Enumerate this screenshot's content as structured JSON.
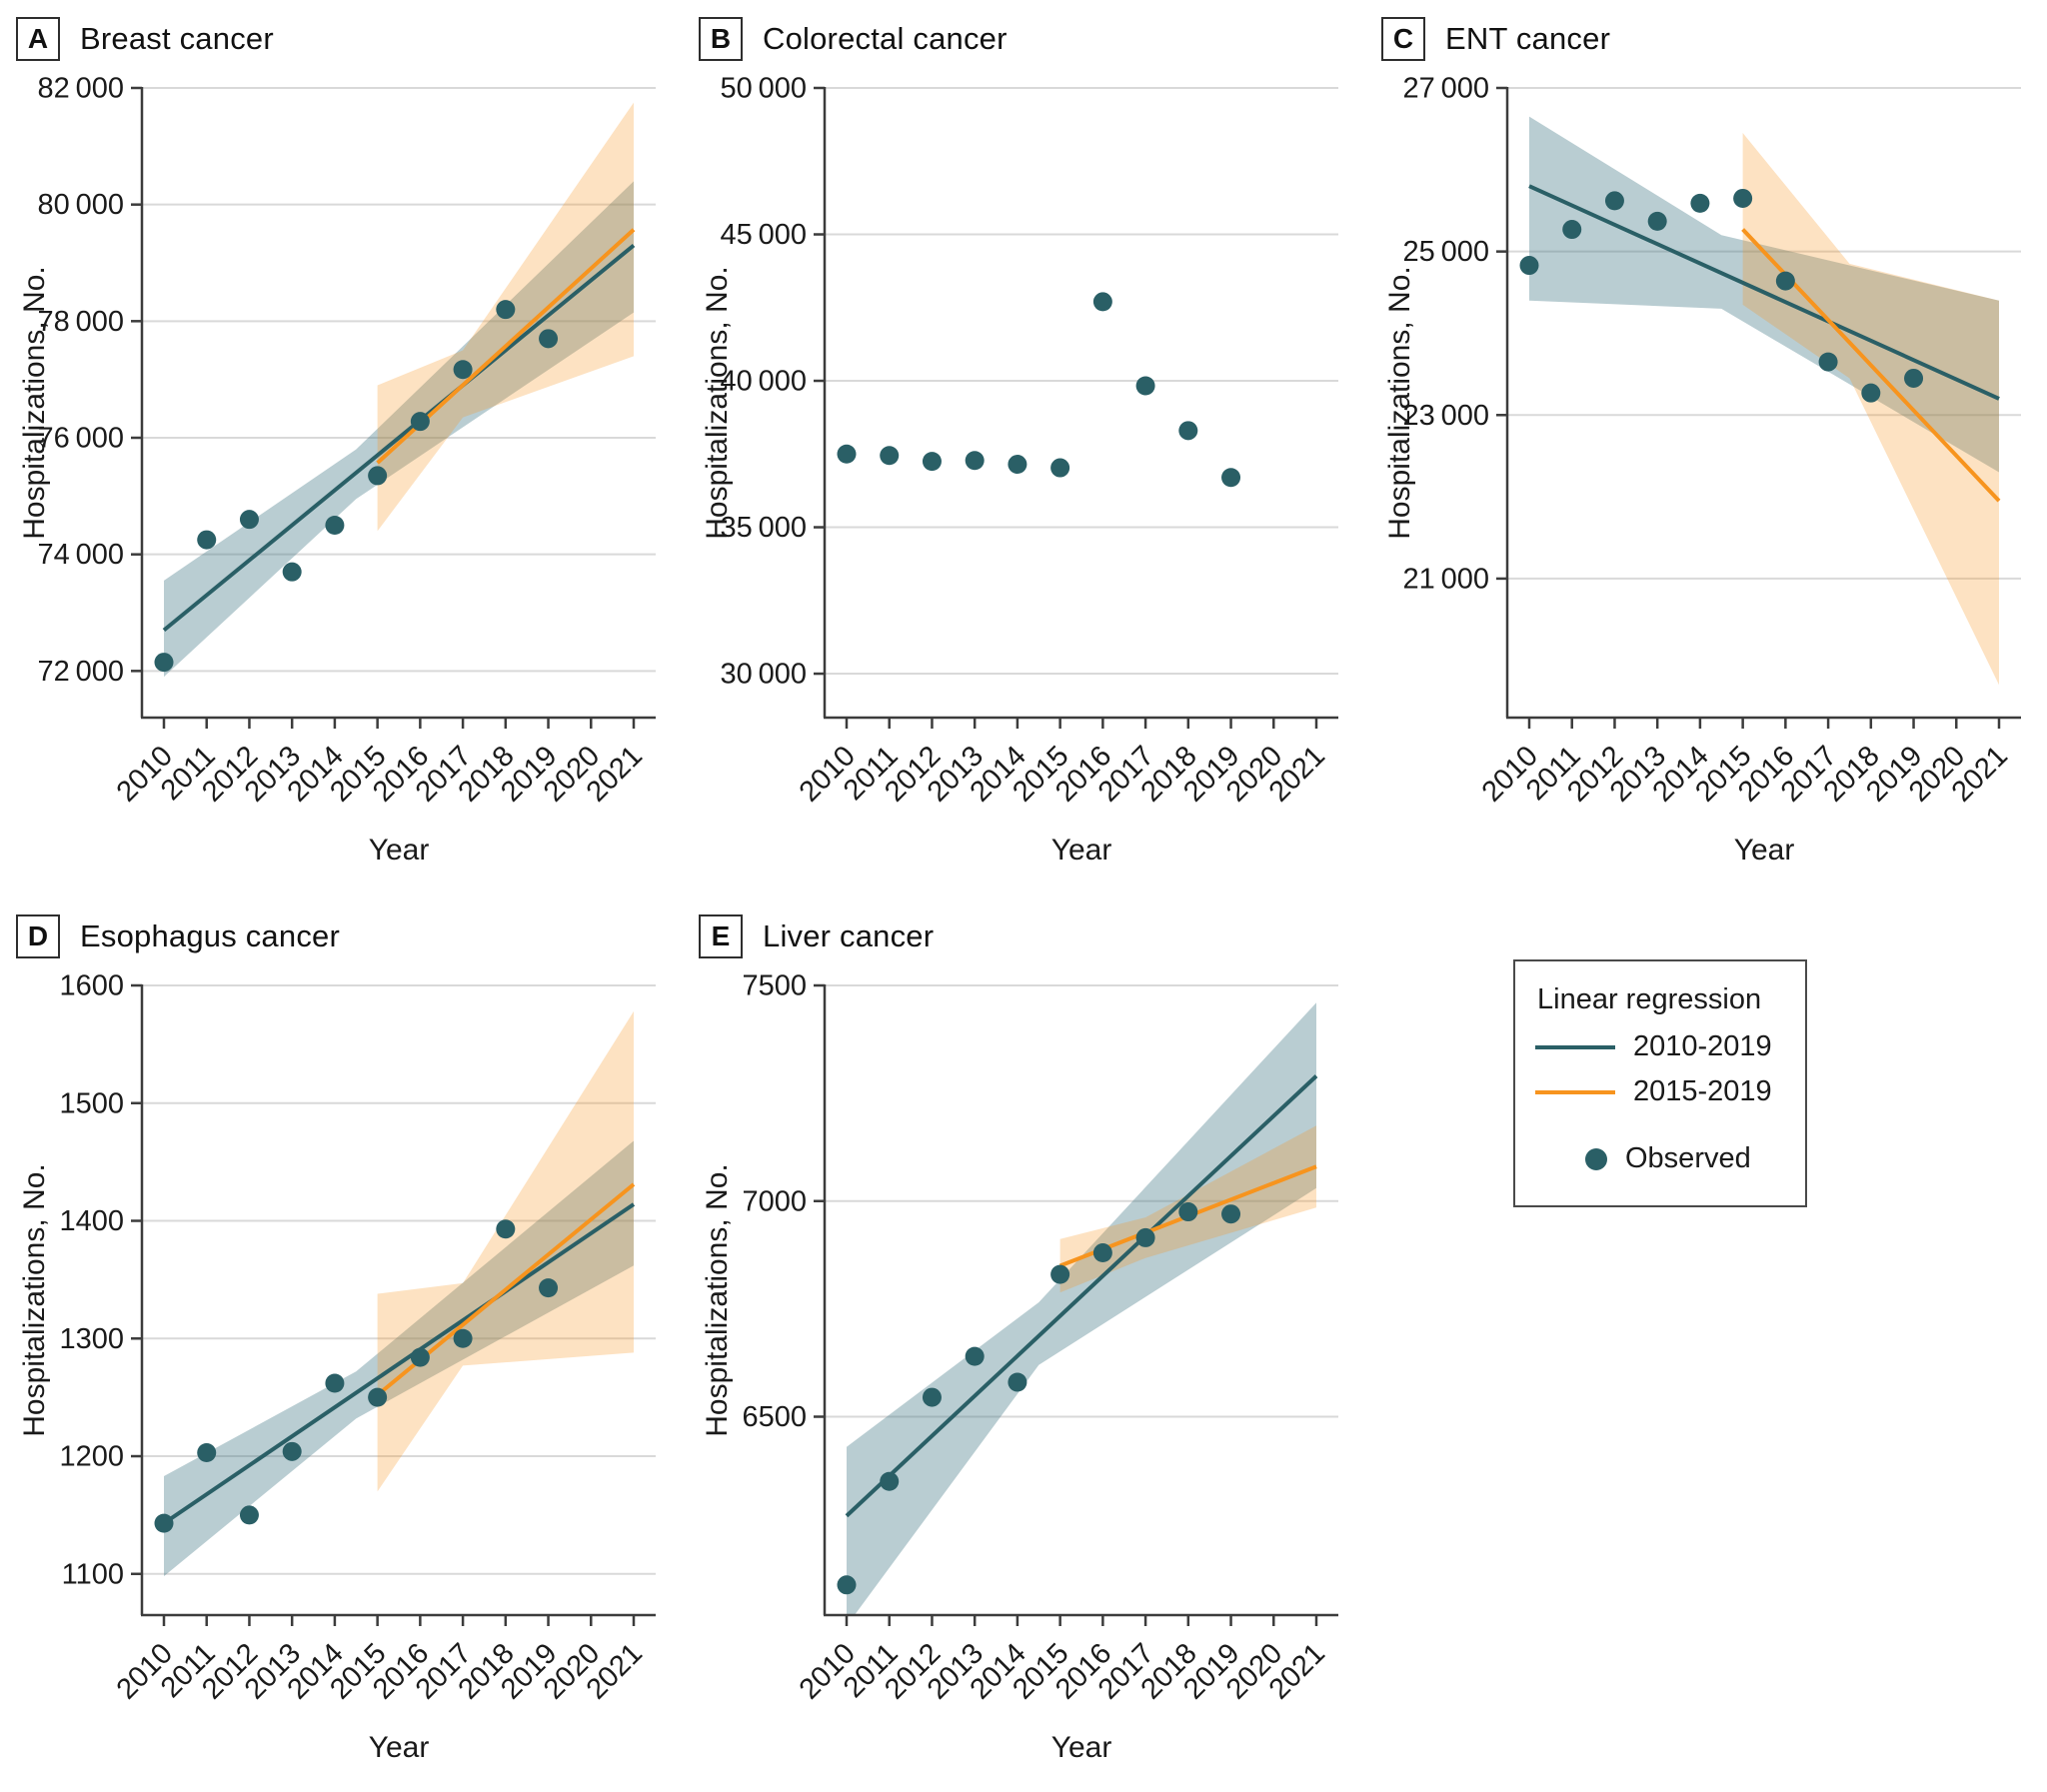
{
  "colors": {
    "teal": "#2a5f66",
    "orange": "#f7941e",
    "teal_band": "rgba(70,124,137,0.38)",
    "orange_band": "rgba(247,148,30,0.27)",
    "grid": "#d9d9d9",
    "axis": "#3c3c3c",
    "text": "#1a1a1a"
  },
  "legend": {
    "title": "Linear regression",
    "items": [
      {
        "label": "2010-2019",
        "type": "line",
        "color_key": "teal"
      },
      {
        "label": "2015-2019",
        "type": "line",
        "color_key": "orange"
      },
      {
        "label": "Observed",
        "type": "dot",
        "color_key": "teal"
      }
    ]
  },
  "chart_data": [
    {
      "label": "A",
      "title": "Breast cancer",
      "type": "scatter+regression",
      "xlabel": "Year",
      "ylabel": "Hospitalizations, No.",
      "x_ticks": [
        2010,
        2011,
        2012,
        2013,
        2014,
        2015,
        2016,
        2017,
        2018,
        2019,
        2020,
        2021
      ],
      "x": [
        2010,
        2011,
        2012,
        2013,
        2014,
        2015,
        2016,
        2017,
        2018,
        2019
      ],
      "observed": [
        72150,
        74250,
        74600,
        73700,
        74500,
        75350,
        76280,
        77170,
        78200,
        77700
      ],
      "y_ticks": [
        72000,
        74000,
        76000,
        78000,
        80000,
        82000
      ],
      "ylim": [
        71200,
        82000
      ],
      "regressions": [
        {
          "name": "2010-2019",
          "color_key": "teal",
          "x": [
            2010,
            2021
          ],
          "y": [
            72700,
            79300
          ],
          "band": [
            [
              2010,
              71900,
              73550
            ],
            [
              2014.5,
              74950,
              75800
            ],
            [
              2021,
              78150,
              80400
            ]
          ]
        },
        {
          "name": "2015-2019",
          "color_key": "orange",
          "x": [
            2015,
            2021
          ],
          "y": [
            75570,
            79570
          ],
          "band": [
            [
              2015,
              74400,
              76900
            ],
            [
              2017,
              76350,
              77500
            ],
            [
              2021,
              77400,
              81750
            ]
          ]
        }
      ]
    },
    {
      "label": "B",
      "title": "Colorectal cancer",
      "type": "scatter+regression",
      "xlabel": "Year",
      "ylabel": "Hospitalizations, No.",
      "x_ticks": [
        2010,
        2011,
        2012,
        2013,
        2014,
        2015,
        2016,
        2017,
        2018,
        2019,
        2020,
        2021
      ],
      "x": [
        2010,
        2011,
        2012,
        2013,
        2014,
        2015,
        2016,
        2017,
        2018,
        2019
      ],
      "observed": [
        37500,
        37450,
        37250,
        37280,
        37150,
        37030,
        42700,
        39830,
        38300,
        36700
      ],
      "y_ticks": [
        30000,
        35000,
        40000,
        45000,
        50000
      ],
      "ylim": [
        28500,
        50000
      ],
      "regressions": []
    },
    {
      "label": "C",
      "title": "ENT cancer",
      "type": "scatter+regression",
      "xlabel": "Year",
      "ylabel": "Hospitalizations, No.",
      "x_ticks": [
        2010,
        2011,
        2012,
        2013,
        2014,
        2015,
        2016,
        2017,
        2018,
        2019,
        2020,
        2021
      ],
      "x": [
        2010,
        2011,
        2012,
        2013,
        2014,
        2015,
        2016,
        2017,
        2018,
        2019
      ],
      "observed": [
        24830,
        25270,
        25620,
        25370,
        25590,
        25650,
        24640,
        23650,
        23270,
        23450
      ],
      "y_ticks": [
        21000,
        23000,
        25000,
        27000
      ],
      "ylim": [
        19300,
        27000
      ],
      "regressions": [
        {
          "name": "2010-2019",
          "color_key": "teal",
          "x": [
            2010,
            2021
          ],
          "y": [
            25800,
            23200
          ],
          "band": [
            [
              2010,
              24400,
              26650
            ],
            [
              2014.5,
              24300,
              25200
            ],
            [
              2021,
              22300,
              24400
            ]
          ]
        },
        {
          "name": "2015-2019",
          "color_key": "orange",
          "x": [
            2015,
            2021
          ],
          "y": [
            25270,
            21950
          ],
          "band": [
            [
              2015,
              24350,
              26450
            ],
            [
              2017.5,
              23450,
              24850
            ],
            [
              2021,
              19700,
              24400
            ]
          ]
        }
      ]
    },
    {
      "label": "D",
      "title": "Esophagus cancer",
      "type": "scatter+regression",
      "xlabel": "Year",
      "ylabel": "Hospitalizations, No.",
      "x_ticks": [
        2010,
        2011,
        2012,
        2013,
        2014,
        2015,
        2016,
        2017,
        2018,
        2019,
        2020,
        2021
      ],
      "x": [
        2010,
        2011,
        2012,
        2013,
        2014,
        2015,
        2016,
        2017,
        2018,
        2019
      ],
      "observed": [
        1143,
        1203,
        1150,
        1204,
        1262,
        1250,
        1284,
        1300,
        1393,
        1343
      ],
      "y_ticks": [
        1100,
        1200,
        1300,
        1400,
        1500,
        1600
      ],
      "ylim": [
        1065,
        1600
      ],
      "regressions": [
        {
          "name": "2010-2019",
          "color_key": "teal",
          "x": [
            2010,
            2021
          ],
          "y": [
            1143,
            1414
          ],
          "band": [
            [
              2010,
              1098,
              1183
            ],
            [
              2014.5,
              1232,
              1272
            ],
            [
              2021,
              1362,
              1468
            ]
          ]
        },
        {
          "name": "2015-2019",
          "color_key": "orange",
          "x": [
            2015,
            2021
          ],
          "y": [
            1252,
            1431
          ],
          "band": [
            [
              2015,
              1170,
              1338
            ],
            [
              2017,
              1277,
              1347
            ],
            [
              2021,
              1288,
              1578
            ]
          ]
        }
      ]
    },
    {
      "label": "E",
      "title": "Liver cancer",
      "type": "scatter+regression",
      "xlabel": "Year",
      "ylabel": "Hospitalizations, No.",
      "x_ticks": [
        2010,
        2011,
        2012,
        2013,
        2014,
        2015,
        2016,
        2017,
        2018,
        2019,
        2020,
        2021
      ],
      "x": [
        2010,
        2011,
        2012,
        2013,
        2014,
        2015,
        2016,
        2017,
        2018,
        2019
      ],
      "observed": [
        6110,
        6350,
        6545,
        6640,
        6580,
        6830,
        6880,
        6915,
        6975,
        6970
      ],
      "y_ticks": [
        6500,
        7000,
        7500
      ],
      "ylim": [
        6040,
        7500
      ],
      "regressions": [
        {
          "name": "2010-2019",
          "color_key": "teal",
          "x": [
            2010,
            2021
          ],
          "y": [
            6270,
            7290
          ],
          "band": [
            [
              2010,
              6015,
              6430
            ],
            [
              2014.5,
              6620,
              6765
            ],
            [
              2021,
              7030,
              7460
            ]
          ]
        },
        {
          "name": "2015-2019",
          "color_key": "orange",
          "x": [
            2015,
            2021
          ],
          "y": [
            6850,
            7080
          ],
          "band": [
            [
              2015,
              6788,
              6912
            ],
            [
              2017,
              6868,
              6962
            ],
            [
              2021,
              6985,
              7175
            ]
          ]
        }
      ]
    }
  ]
}
